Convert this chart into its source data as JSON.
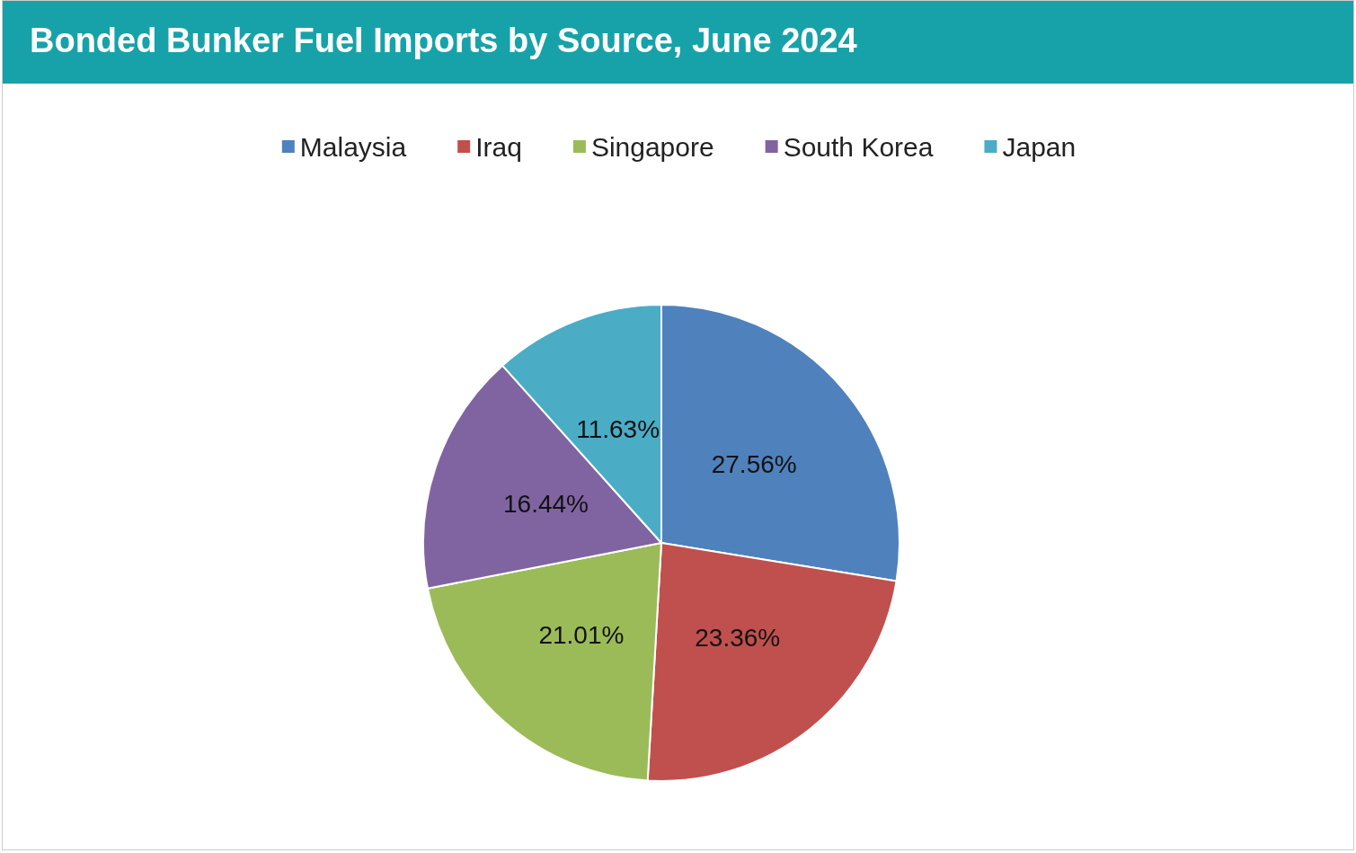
{
  "chart_data": {
    "type": "pie",
    "title": "Bonded Bunker Fuel Imports by Source, June 2024",
    "categories": [
      "Malaysia",
      "Iraq",
      "Singapore",
      "South Korea",
      "Japan"
    ],
    "values": [
      27.56,
      23.36,
      21.01,
      16.44,
      11.63
    ],
    "value_labels": [
      "27.56%",
      "23.36%",
      "21.01%",
      "16.44%",
      "11.63%"
    ],
    "colors": [
      "#4f81bd",
      "#c0504d",
      "#9bbb59",
      "#8064a2",
      "#4bacc6"
    ],
    "legend": "top"
  }
}
